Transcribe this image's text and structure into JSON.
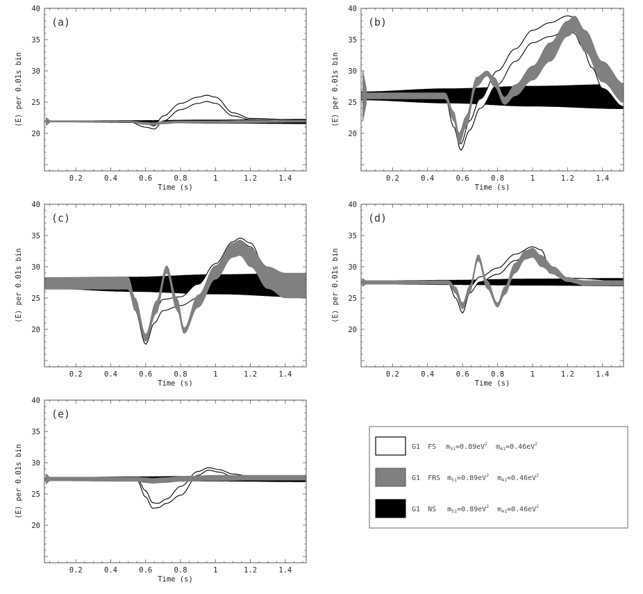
{
  "legend": {
    "entries": [
      {
        "series": "G1",
        "model": "FS",
        "m51": "0.89eV",
        "m41": "0.46eV",
        "style": "white"
      },
      {
        "series": "G1",
        "model": "FRS",
        "m51": "0.89eV",
        "m41": "0.46eV",
        "style": "gray"
      },
      {
        "series": "G1",
        "model": "NS",
        "m51": "0.89eV",
        "m41": "0.46eV",
        "style": "black"
      }
    ],
    "m51_sub": "51",
    "m41_sub": "41",
    "exponent": "2",
    "mass_symbol": "m"
  },
  "colors": {
    "fs": "#ffffff",
    "frs": "#808080",
    "ns": "#000000",
    "frame": "#555555"
  },
  "chart_data": [
    {
      "type": "line",
      "label": "(a)",
      "xlabel": "Time (s)",
      "ylabel": "⟨E⟩ per 0.01s bin",
      "xlim": [
        0.02,
        1.52
      ],
      "ylim": [
        14,
        40
      ],
      "xticks": [
        "0.2",
        "0.4",
        "0.6",
        "0.8",
        "1",
        "1.2",
        "1.4"
      ],
      "yticks": [
        "20",
        "25",
        "30",
        "35",
        "40"
      ],
      "spike_amp": 0.6,
      "series": {
        "NS": {
          "x": [
            0.02,
            0.52,
            1.0,
            1.52
          ],
          "low": [
            21.8,
            21.7,
            21.6,
            21.5
          ],
          "high": [
            22.0,
            22.1,
            22.2,
            22.3
          ]
        },
        "FRS": {
          "x": [
            0.02,
            0.5,
            0.6,
            0.64,
            0.7,
            0.8,
            1.0,
            1.2,
            1.52
          ],
          "low": [
            21.8,
            21.8,
            21.4,
            21.3,
            21.5,
            21.7,
            21.7,
            21.7,
            21.8
          ],
          "high": [
            22.0,
            22.0,
            21.8,
            21.7,
            21.9,
            22.0,
            22.0,
            22.1,
            22.1
          ]
        },
        "FS": {
          "x": [
            0.02,
            0.5,
            0.6,
            0.65,
            0.7,
            0.8,
            0.9,
            0.95,
            1.0,
            1.1,
            1.2,
            1.52
          ],
          "low": [
            21.9,
            21.9,
            21.0,
            20.7,
            22.0,
            23.8,
            24.8,
            25.1,
            24.8,
            22.8,
            22.2,
            22.0
          ],
          "high": [
            22.0,
            22.0,
            21.5,
            21.2,
            22.8,
            24.8,
            25.8,
            26.1,
            25.8,
            23.3,
            22.4,
            22.1
          ]
        }
      }
    },
    {
      "type": "line",
      "label": "(b)",
      "xlabel": "Time (s)",
      "ylabel": "⟨E⟩ per 0.01s bin",
      "xlim": [
        0.02,
        1.52
      ],
      "ylim": [
        14,
        40
      ],
      "xticks": [
        "0.2",
        "0.4",
        "0.6",
        "0.8",
        "1",
        "1.2",
        "1.4"
      ],
      "yticks": [
        "20",
        "25",
        "30",
        "35",
        "40"
      ],
      "spike_amp": 4,
      "series": {
        "NS": {
          "x": [
            0.02,
            0.52,
            1.0,
            1.52
          ],
          "low": [
            25.3,
            24.8,
            24.3,
            23.9
          ],
          "high": [
            26.7,
            27.2,
            27.6,
            27.9
          ]
        },
        "FRS": {
          "x": [
            0.02,
            0.5,
            0.55,
            0.58,
            0.62,
            0.68,
            0.74,
            0.78,
            0.84,
            0.9,
            1.0,
            1.1,
            1.2,
            1.24,
            1.3,
            1.4,
            1.52
          ],
          "low": [
            25.5,
            25.5,
            22.0,
            18.2,
            21.0,
            27.5,
            29.2,
            27.5,
            24.6,
            26.0,
            28.5,
            31.5,
            35.5,
            36.2,
            33.0,
            28.2,
            25.0
          ],
          "high": [
            26.5,
            26.5,
            23.5,
            20.0,
            22.8,
            29.0,
            30.0,
            29.0,
            25.8,
            27.8,
            30.8,
            34.5,
            38.0,
            38.8,
            36.5,
            31.5,
            28.0
          ]
        },
        "FS": {
          "x": [
            0.02,
            0.5,
            0.55,
            0.59,
            0.64,
            0.7,
            0.8,
            0.9,
            1.0,
            1.1,
            1.2,
            1.24,
            1.28,
            1.34,
            1.4,
            1.52
          ],
          "low": [
            25.8,
            25.8,
            21.0,
            17.3,
            20.5,
            24.0,
            27.8,
            31.5,
            34.5,
            35.5,
            36.5,
            36.0,
            34.0,
            30.5,
            27.2,
            24.3
          ],
          "high": [
            26.2,
            26.2,
            22.2,
            18.3,
            22.0,
            25.5,
            30.0,
            33.5,
            36.5,
            37.7,
            38.8,
            38.6,
            36.8,
            33.0,
            29.5,
            25.8
          ]
        }
      }
    },
    {
      "type": "line",
      "label": "(c)",
      "xlabel": "Time (s)",
      "ylabel": "⟨E⟩ per 0.01s bin",
      "xlim": [
        0.02,
        1.52
      ],
      "ylim": [
        14,
        40
      ],
      "xticks": [
        "0.2",
        "0.4",
        "0.6",
        "0.8",
        "1",
        "1.2",
        "1.4"
      ],
      "yticks": [
        "20",
        "25",
        "30",
        "35",
        "40"
      ],
      "spike_amp": 0.8,
      "series": {
        "NS": {
          "x": [
            0.02,
            0.52,
            1.0,
            1.52
          ],
          "low": [
            26.5,
            26.0,
            25.6,
            25.1
          ],
          "high": [
            28.0,
            28.4,
            28.8,
            29.0
          ]
        },
        "FRS": {
          "x": [
            0.02,
            0.5,
            0.54,
            0.6,
            0.66,
            0.72,
            0.78,
            0.82,
            0.9,
            1.0,
            1.1,
            1.14,
            1.2,
            1.3,
            1.4,
            1.52
          ],
          "low": [
            26.4,
            26.4,
            23.0,
            18.0,
            22.5,
            29.0,
            23.0,
            19.3,
            23.5,
            28.0,
            31.5,
            31.8,
            30.0,
            26.5,
            25.0,
            25.0
          ],
          "high": [
            28.3,
            28.4,
            25.0,
            19.2,
            24.5,
            30.2,
            25.0,
            20.2,
            25.5,
            30.2,
            33.8,
            34.3,
            33.0,
            30.0,
            29.0,
            29.0
          ]
        },
        "FS": {
          "x": [
            0.02,
            0.5,
            0.54,
            0.6,
            0.65,
            0.7,
            0.8,
            0.9,
            1.0,
            1.1,
            1.14,
            1.2,
            1.3,
            1.4,
            1.52
          ],
          "low": [
            27.2,
            27.2,
            23.0,
            17.6,
            21.0,
            23.0,
            23.8,
            25.0,
            28.0,
            32.5,
            34.2,
            33.2,
            28.0,
            25.3,
            25.0
          ],
          "high": [
            27.6,
            27.6,
            24.0,
            18.8,
            22.8,
            24.8,
            25.2,
            27.2,
            30.5,
            34.0,
            34.6,
            33.8,
            28.6,
            25.8,
            25.3
          ]
        }
      }
    },
    {
      "type": "line",
      "label": "(d)",
      "xlabel": "Time (s)",
      "ylabel": "⟨E⟩ per 0.01s bin",
      "xlim": [
        0.02,
        1.52
      ],
      "ylim": [
        14,
        40
      ],
      "xticks": [
        "0.2",
        "0.4",
        "0.6",
        "0.8",
        "1",
        "1.2",
        "1.4"
      ],
      "yticks": [
        "20",
        "25",
        "30",
        "35",
        "40"
      ],
      "spike_amp": 0.6,
      "series": {
        "NS": {
          "x": [
            0.02,
            0.52,
            1.0,
            1.52
          ],
          "low": [
            27.2,
            27.1,
            27.0,
            26.9
          ],
          "high": [
            27.8,
            27.9,
            28.1,
            28.2
          ]
        },
        "FRS": {
          "x": [
            0.02,
            0.52,
            0.56,
            0.6,
            0.64,
            0.69,
            0.74,
            0.8,
            0.84,
            0.9,
            0.96,
            1.0,
            1.05,
            1.12,
            1.2,
            1.3,
            1.52
          ],
          "low": [
            27.2,
            27.2,
            25.8,
            23.2,
            25.8,
            31.0,
            26.5,
            23.5,
            25.5,
            29.0,
            31.2,
            31.5,
            30.0,
            28.8,
            27.6,
            27.0,
            27.0
          ],
          "high": [
            27.8,
            27.8,
            26.8,
            24.2,
            27.0,
            32.0,
            27.8,
            24.2,
            26.8,
            30.6,
            32.6,
            33.0,
            31.8,
            30.0,
            28.3,
            27.8,
            27.8
          ]
        },
        "FS": {
          "x": [
            0.02,
            0.52,
            0.56,
            0.6,
            0.64,
            0.7,
            0.8,
            0.9,
            1.0,
            1.05,
            1.1,
            1.2,
            1.52
          ],
          "low": [
            27.3,
            27.3,
            25.0,
            22.6,
            25.8,
            27.6,
            28.8,
            31.0,
            32.5,
            31.8,
            29.0,
            27.8,
            27.5
          ],
          "high": [
            27.7,
            27.7,
            25.8,
            23.3,
            26.8,
            28.4,
            29.8,
            32.0,
            33.2,
            32.7,
            29.8,
            28.2,
            27.8
          ]
        }
      }
    },
    {
      "type": "line",
      "label": "(e)",
      "xlabel": "Time (s)",
      "ylabel": "⟨E⟩ per 0.01s bin",
      "xlim": [
        0.02,
        1.52
      ],
      "ylim": [
        14,
        40
      ],
      "xticks": [
        "0.2",
        "0.4",
        "0.6",
        "0.8",
        "1",
        "1.2",
        "1.4"
      ],
      "yticks": [
        "20",
        "25",
        "30",
        "35",
        "40"
      ],
      "spike_amp": 0.8,
      "series": {
        "NS": {
          "x": [
            0.02,
            0.52,
            1.0,
            1.52
          ],
          "low": [
            27.2,
            27.1,
            27.0,
            26.9
          ],
          "high": [
            27.6,
            27.8,
            27.9,
            28.0
          ]
        },
        "FRS": {
          "x": [
            0.02,
            0.55,
            0.6,
            0.64,
            0.7,
            0.8,
            1.0,
            1.2,
            1.52
          ],
          "low": [
            27.1,
            27.0,
            26.8,
            26.7,
            26.8,
            27.0,
            27.1,
            27.2,
            27.2
          ],
          "high": [
            27.7,
            27.7,
            27.6,
            27.5,
            27.6,
            27.8,
            28.0,
            28.0,
            28.0
          ]
        },
        "FS": {
          "x": [
            0.02,
            0.55,
            0.6,
            0.64,
            0.67,
            0.72,
            0.8,
            0.9,
            0.96,
            1.02,
            1.1,
            1.2,
            1.52
          ],
          "low": [
            27.4,
            27.2,
            24.5,
            22.7,
            22.8,
            23.5,
            24.8,
            28.0,
            28.8,
            28.5,
            27.8,
            27.6,
            27.4
          ],
          "high": [
            27.6,
            27.5,
            25.5,
            23.6,
            23.5,
            24.2,
            26.2,
            28.6,
            29.2,
            28.9,
            28.2,
            27.8,
            27.6
          ]
        }
      }
    }
  ]
}
